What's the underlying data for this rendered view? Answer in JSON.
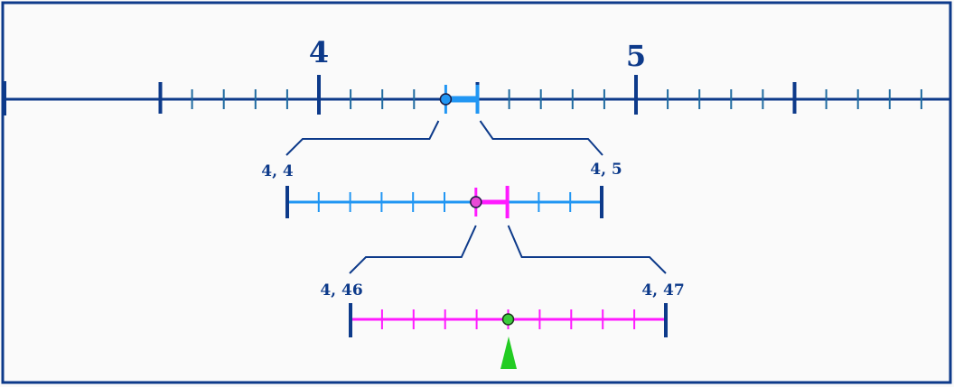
{
  "colors": {
    "frame": "#0d3a8a",
    "main_line": "#0d3a8a",
    "main_minor_tick": "#1f6aa0",
    "level1_line": "#2196f3",
    "level2_line": "#ff1aff",
    "marker_fill_level0": "#2196f3",
    "marker_fill_level1": "#e84ad6",
    "marker_fill_level2": "#3ccc3c",
    "pointer": "#22cc22",
    "background": "#fafafa"
  },
  "main_axis": {
    "labels": [
      "4",
      "5"
    ],
    "range": [
      3.5,
      6.4
    ],
    "label_values": [
      4,
      5
    ],
    "major_tick_values": [
      3.5,
      4,
      4.5,
      5,
      5.5
    ],
    "minor_step": 0.1,
    "highlight": [
      4.4,
      4.5
    ],
    "point_value": 4.4
  },
  "zoom1": {
    "left_label": "4, 4",
    "right_label": "4, 5",
    "range": [
      4.4,
      4.5
    ],
    "divisions": 10,
    "highlight": [
      4.46,
      4.47
    ],
    "point_value": 4.46
  },
  "zoom2": {
    "left_label": "4, 46",
    "right_label": "4, 47",
    "range": [
      4.46,
      4.47
    ],
    "divisions": 10,
    "point_value": 4.465
  },
  "pointer": {
    "icon": "arrow-up-icon",
    "value": 4.465
  }
}
